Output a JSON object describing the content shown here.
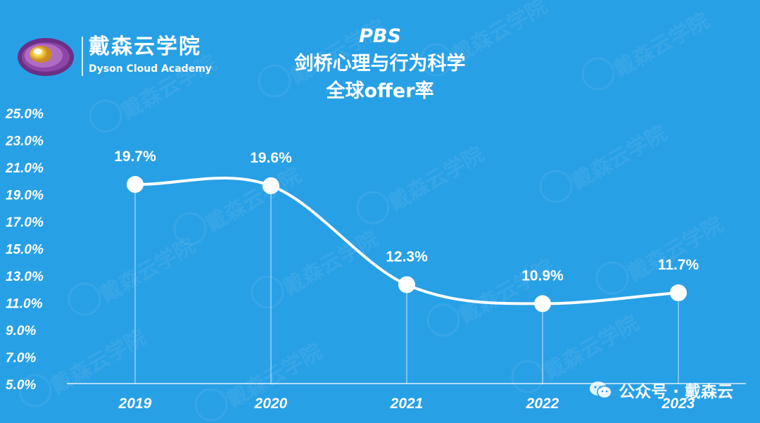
{
  "brand": {
    "name": "戴森云学院",
    "subtitle": "Dyson Cloud Academy"
  },
  "title": {
    "line1": "PBS",
    "line2": "剑桥心理与行为科学",
    "line3": "全球offer率"
  },
  "footer": {
    "text": "公众号 · 戴森云"
  },
  "watermark_text": "戴森云学院",
  "colors": {
    "background": "#28a0e6",
    "line": "#ffffff",
    "text": "#ffffff"
  },
  "chart_data": {
    "type": "line",
    "x": [
      "2019",
      "2020",
      "2021",
      "2022",
      "2023"
    ],
    "values": [
      19.7,
      19.6,
      12.3,
      10.9,
      11.7
    ],
    "data_labels": [
      "19.7%",
      "19.6%",
      "12.3%",
      "10.9%",
      "11.7%"
    ],
    "y_ticks": [
      "5.0%",
      "7.0%",
      "9.0%",
      "11.0%",
      "13.0%",
      "15.0%",
      "17.0%",
      "19.0%",
      "21.0%",
      "23.0%",
      "25.0%"
    ],
    "y_tick_values": [
      5,
      7,
      9,
      11,
      13,
      15,
      17,
      19,
      21,
      23,
      25
    ],
    "ylim": [
      5,
      25
    ],
    "smooth": true,
    "grid": false,
    "vertical_drop_lines": true
  }
}
